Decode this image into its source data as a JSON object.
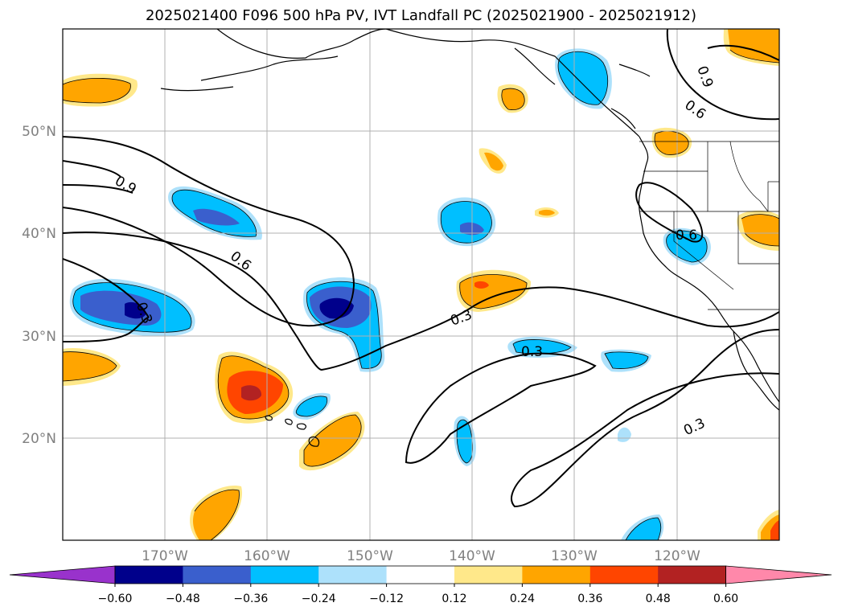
{
  "title": "2025021400 F096 500 hPa PV, IVT Landfall PC (2025021900 - 2025021912)",
  "map": {
    "lon_labels": [
      "170°W",
      "160°W",
      "150°W",
      "140°W",
      "130°W",
      "120°W"
    ],
    "lat_labels": [
      "50°N",
      "40°N",
      "30°N",
      "20°N"
    ],
    "contour_labels": [
      "0.9",
      "0.6",
      "0.3",
      "0.3",
      "0.3",
      "0.6",
      "0.9",
      "0.6",
      "0.3"
    ]
  },
  "colorbar": {
    "levels": [
      "−0.60",
      "−0.48",
      "−0.36",
      "−0.24",
      "−0.12",
      "0.12",
      "0.24",
      "0.36",
      "0.48",
      "0.60"
    ],
    "colors": [
      "#9932CC",
      "#00008B",
      "#3A5FCD",
      "#00BFFF",
      "#ADE1FB",
      "#FFFFFF",
      "#FFE88A",
      "#FFA500",
      "#FF4500",
      "#B22222",
      "#FF88AA"
    ]
  }
}
